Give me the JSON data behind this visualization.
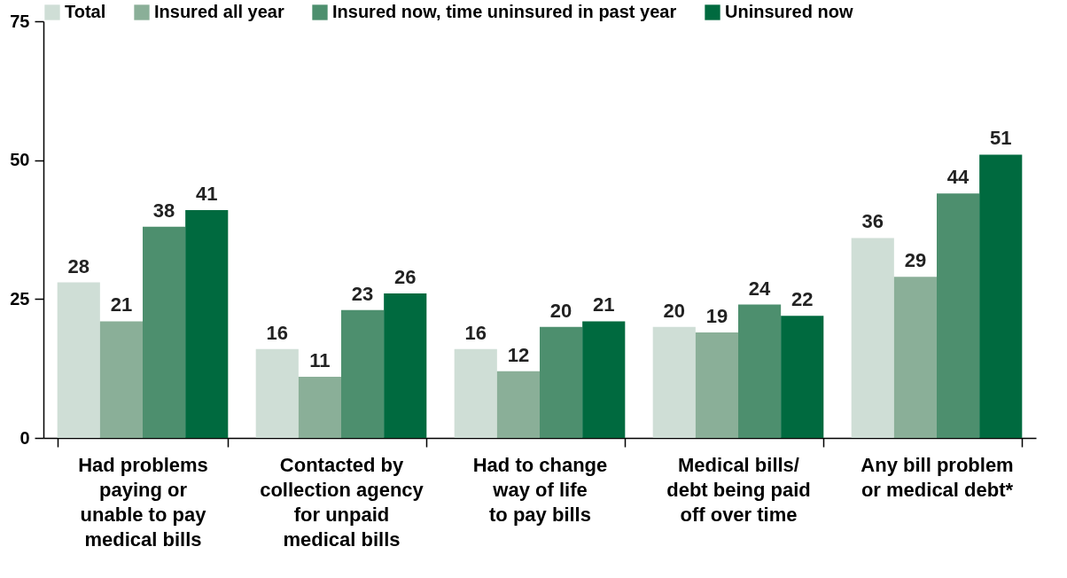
{
  "chart_data": {
    "type": "bar",
    "categories": [
      "Had problems\npaying or\nunable to pay\nmedical bills",
      "Contacted by\ncollection agency\nfor unpaid\nmedical bills",
      "Had to change\nway of life\nto pay bills",
      "Medical bills/\ndebt being paid\noff over time",
      "Any bill problem\nor medical debt*"
    ],
    "series": [
      {
        "name": "Total",
        "color": "#cfded6",
        "values": [
          28,
          16,
          16,
          20,
          36
        ]
      },
      {
        "name": "Insured all year",
        "color": "#8aaf98",
        "values": [
          21,
          11,
          12,
          19,
          29
        ]
      },
      {
        "name": "Insured now, time uninsured in past year",
        "color": "#4d8f6e",
        "values": [
          38,
          23,
          20,
          24,
          44
        ]
      },
      {
        "name": "Uninsured now",
        "color": "#006a3f",
        "values": [
          41,
          26,
          21,
          22,
          51
        ]
      }
    ],
    "ylim": [
      0,
      75
    ],
    "yticks": [
      0,
      25,
      50,
      75
    ],
    "data_labels": true,
    "legend": "top"
  }
}
